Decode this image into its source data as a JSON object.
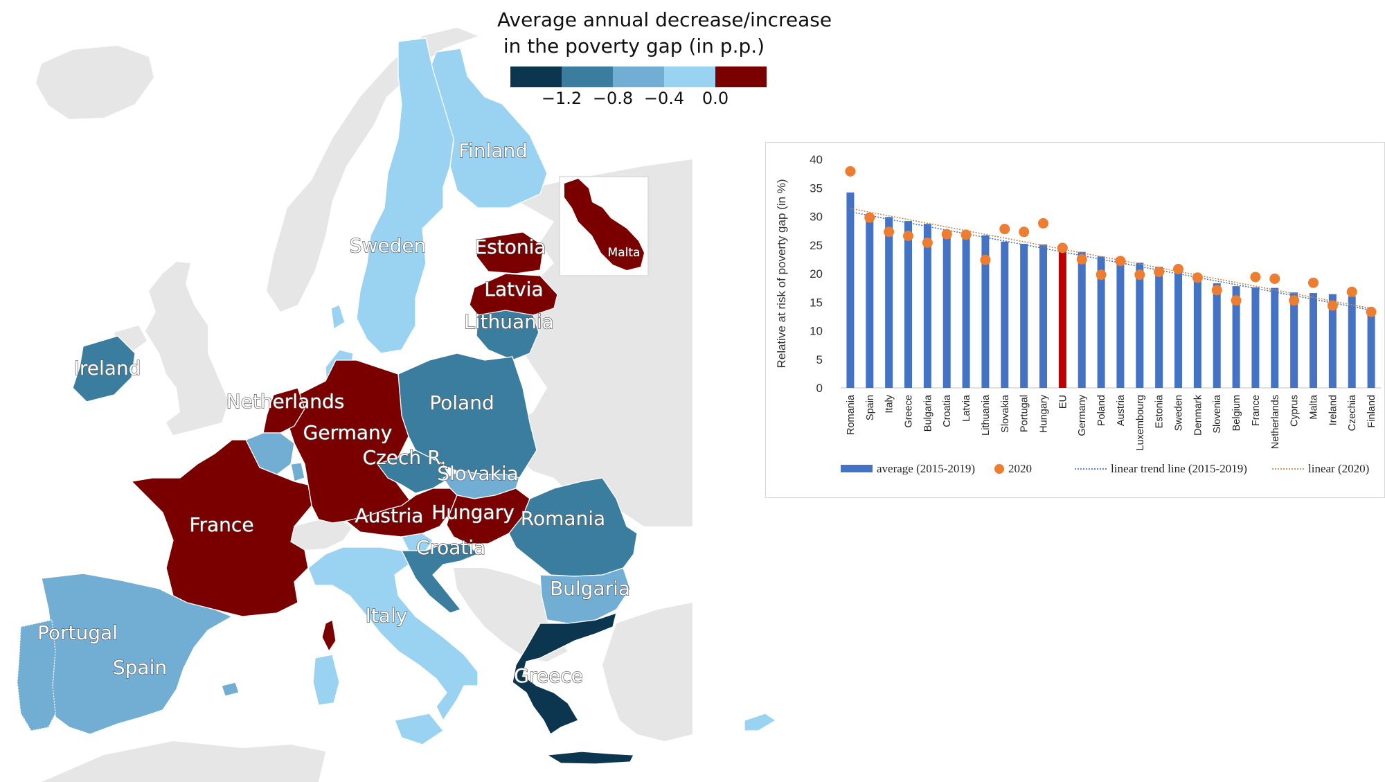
{
  "legend": {
    "title_line1": "Average annual decrease/increase",
    "title_line2": " in the poverty gap (in p.p.)",
    "colors": [
      "#0c3550",
      "#3a7d9e",
      "#72aed3",
      "#9ad3f1",
      "#7a0000"
    ],
    "ticks": [
      "−1.2",
      "−0.8",
      "−0.4",
      "0.0"
    ]
  },
  "map": {
    "colors": {
      "darkest": "#0c3550",
      "dark": "#3a7d9e",
      "medium": "#72aed3",
      "light": "#9ad3f1",
      "increase": "#7a0000",
      "no_data": "#e6e6e6",
      "sea": "#ffffff"
    },
    "labels": {
      "finland": "Finland",
      "sweden": "Sweden",
      "estonia": "Estonia",
      "latvia": "Latvia",
      "lithuania": "Lithuania",
      "malta": "Malta",
      "ireland": "Ireland",
      "netherlands": "Netherlands",
      "poland": "Poland",
      "germany": "Germany",
      "czech": "Czech R.",
      "slovakia": "Slovakia",
      "austria": "Austria",
      "hungary": "Hungary",
      "romania": "Romania",
      "croatia": "Croatia",
      "france": "France",
      "bulgaria": "Bulgaria",
      "italy": "Italy",
      "portugal": "Portugal",
      "spain": "Spain",
      "greece": "Greece"
    }
  },
  "chart_data": {
    "type": "bar",
    "ylabel": "Relative at risk of poverty gap (in %)",
    "ylim": [
      0,
      40
    ],
    "yticks": [
      0,
      5,
      10,
      15,
      20,
      25,
      30,
      35,
      40
    ],
    "grid": false,
    "legend_position": "bottom",
    "categories": [
      "Romania",
      "Spain",
      "Italy",
      "Greece",
      "Bulgaria",
      "Croatia",
      "Latvia",
      "Lithuania",
      "Slovakia",
      "Portugal",
      "Hungary",
      "EU",
      "Germany",
      "Poland",
      "Austria",
      "Luxembourg",
      "Estonia",
      "Sweden",
      "Denmark",
      "Slovenia",
      "Belgium",
      "France",
      "Netherlands",
      "Cyprus",
      "Malta",
      "Ireland",
      "Czechia",
      "Finland"
    ],
    "highlight_category": "EU",
    "series": [
      {
        "name": "average (2015-2019)",
        "kind": "bar",
        "color": "#4472c4",
        "highlight_color": "#c00000",
        "values": [
          34.2,
          30.1,
          29.9,
          29.2,
          28.7,
          27.4,
          27.1,
          26.7,
          25.6,
          25.2,
          25.1,
          24.6,
          23.8,
          23.0,
          22.5,
          21.9,
          21.2,
          20.5,
          19.2,
          18.3,
          17.8,
          17.6,
          17.5,
          16.7,
          16.6,
          16.4,
          16.0,
          12.8
        ]
      },
      {
        "name": "2020",
        "kind": "dot",
        "color": "#ed7d31",
        "values": [
          37.9,
          29.8,
          27.3,
          26.6,
          25.4,
          26.9,
          26.8,
          22.4,
          27.8,
          27.3,
          28.8,
          24.5,
          22.5,
          19.8,
          22.2,
          19.8,
          20.3,
          20.8,
          19.3,
          17.1,
          15.3,
          19.4,
          19.1,
          15.3,
          18.4,
          14.4,
          16.8,
          13.3
        ]
      },
      {
        "name": "linear trend line (2015-2019)",
        "kind": "trend",
        "color": "#4472c4",
        "start": 30.8,
        "end": 13.6
      },
      {
        "name": "linear (2020)",
        "kind": "trend",
        "color": "#c8864a",
        "start": 31.4,
        "end": 13.9
      }
    ]
  }
}
